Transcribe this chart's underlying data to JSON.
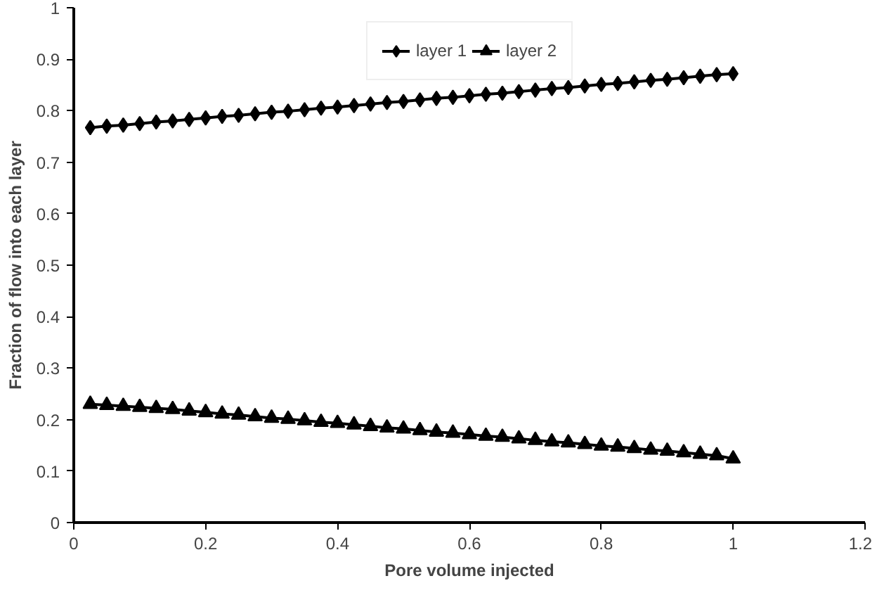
{
  "chart_data": {
    "type": "line",
    "xlabel": "Pore volume injected",
    "ylabel": "Fraction of flow into each layer",
    "x": [
      0.025,
      0.05,
      0.075,
      0.1,
      0.125,
      0.15,
      0.175,
      0.2,
      0.225,
      0.25,
      0.275,
      0.3,
      0.325,
      0.35,
      0.375,
      0.4,
      0.425,
      0.45,
      0.475,
      0.5,
      0.525,
      0.55,
      0.575,
      0.6,
      0.625,
      0.65,
      0.675,
      0.7,
      0.725,
      0.75,
      0.775,
      0.8,
      0.825,
      0.85,
      0.875,
      0.9,
      0.925,
      0.95,
      0.975,
      1.0
    ],
    "series": [
      {
        "name": "layer 1",
        "color": "#000000",
        "marker": "diamond",
        "values": [
          0.767,
          0.77,
          0.772,
          0.775,
          0.778,
          0.78,
          0.783,
          0.786,
          0.789,
          0.791,
          0.794,
          0.797,
          0.799,
          0.802,
          0.805,
          0.807,
          0.81,
          0.813,
          0.816,
          0.818,
          0.821,
          0.824,
          0.826,
          0.829,
          0.832,
          0.834,
          0.837,
          0.84,
          0.843,
          0.845,
          0.848,
          0.851,
          0.853,
          0.856,
          0.859,
          0.861,
          0.864,
          0.867,
          0.87,
          0.872
        ]
      },
      {
        "name": "layer 2",
        "color": "#000000",
        "marker": "triangle",
        "values": [
          0.23,
          0.228,
          0.226,
          0.224,
          0.222,
          0.22,
          0.217,
          0.214,
          0.211,
          0.209,
          0.206,
          0.203,
          0.201,
          0.198,
          0.195,
          0.193,
          0.19,
          0.187,
          0.184,
          0.182,
          0.179,
          0.176,
          0.174,
          0.171,
          0.168,
          0.166,
          0.163,
          0.16,
          0.157,
          0.155,
          0.152,
          0.149,
          0.147,
          0.144,
          0.141,
          0.139,
          0.136,
          0.133,
          0.13,
          0.124
        ]
      }
    ],
    "xlim": [
      0,
      1.2
    ],
    "xticks": [
      0,
      0.2,
      0.4,
      0.6,
      0.8,
      1,
      1.2
    ],
    "ylim": [
      0,
      1
    ],
    "yticks": [
      0,
      0.1,
      0.2,
      0.3,
      0.4,
      0.5,
      0.6,
      0.7,
      0.8,
      0.9,
      1
    ],
    "grid": false,
    "legend": "top",
    "line_style": "solid"
  }
}
